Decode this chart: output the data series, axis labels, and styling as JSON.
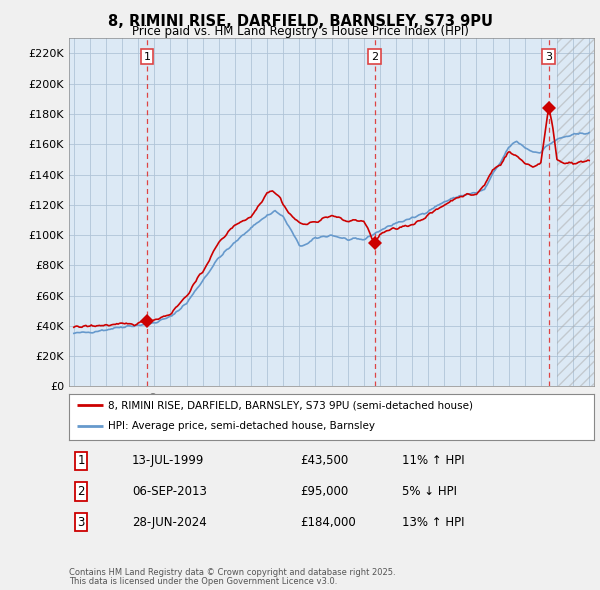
{
  "title": "8, RIMINI RISE, DARFIELD, BARNSLEY, S73 9PU",
  "subtitle": "Price paid vs. HM Land Registry's House Price Index (HPI)",
  "background_color": "#f0f0f0",
  "plot_bg_color": "#dce9f5",
  "grid_color": "#b0c4d8",
  "ylim": [
    0,
    230000
  ],
  "yticks": [
    0,
    20000,
    40000,
    60000,
    80000,
    100000,
    120000,
    140000,
    160000,
    180000,
    200000,
    220000
  ],
  "ytick_labels": [
    "£0",
    "£20K",
    "£40K",
    "£60K",
    "£80K",
    "£100K",
    "£120K",
    "£140K",
    "£160K",
    "£180K",
    "£200K",
    "£220K"
  ],
  "xlim_start": 1994.7,
  "xlim_end": 2027.3,
  "future_start": 2025.0,
  "xticks": [
    1995,
    1996,
    1997,
    1998,
    1999,
    2000,
    2001,
    2002,
    2003,
    2004,
    2005,
    2006,
    2007,
    2008,
    2009,
    2010,
    2011,
    2012,
    2013,
    2014,
    2015,
    2016,
    2017,
    2018,
    2019,
    2020,
    2021,
    2022,
    2023,
    2024,
    2025,
    2026,
    2027
  ],
  "red_line_color": "#cc0000",
  "blue_line_color": "#6699cc",
  "vline_color": "#dd4444",
  "sale_marker_color": "#cc0000",
  "transactions": [
    {
      "year": 1999.54,
      "price": 43500,
      "label": "1",
      "date": "13-JUL-1999"
    },
    {
      "year": 2013.68,
      "price": 95000,
      "label": "2",
      "date": "06-SEP-2013"
    },
    {
      "year": 2024.49,
      "price": 184000,
      "label": "3",
      "date": "28-JUN-2024"
    }
  ],
  "legend_entries": [
    {
      "label": "8, RIMINI RISE, DARFIELD, BARNSLEY, S73 9PU (semi-detached house)",
      "color": "#cc0000",
      "lw": 2
    },
    {
      "label": "HPI: Average price, semi-detached house, Barnsley",
      "color": "#6699cc",
      "lw": 2
    }
  ],
  "table_data": [
    {
      "num": "1",
      "date": "13-JUL-1999",
      "price": "£43,500",
      "hpi": "11% ↑ HPI"
    },
    {
      "num": "2",
      "date": "06-SEP-2013",
      "price": "£95,000",
      "hpi": "5% ↓ HPI"
    },
    {
      "num": "3",
      "date": "28-JUN-2024",
      "price": "£184,000",
      "hpi": "13% ↑ HPI"
    }
  ],
  "footer": "Contains HM Land Registry data © Crown copyright and database right 2025.\nThis data is licensed under the Open Government Licence v3.0."
}
